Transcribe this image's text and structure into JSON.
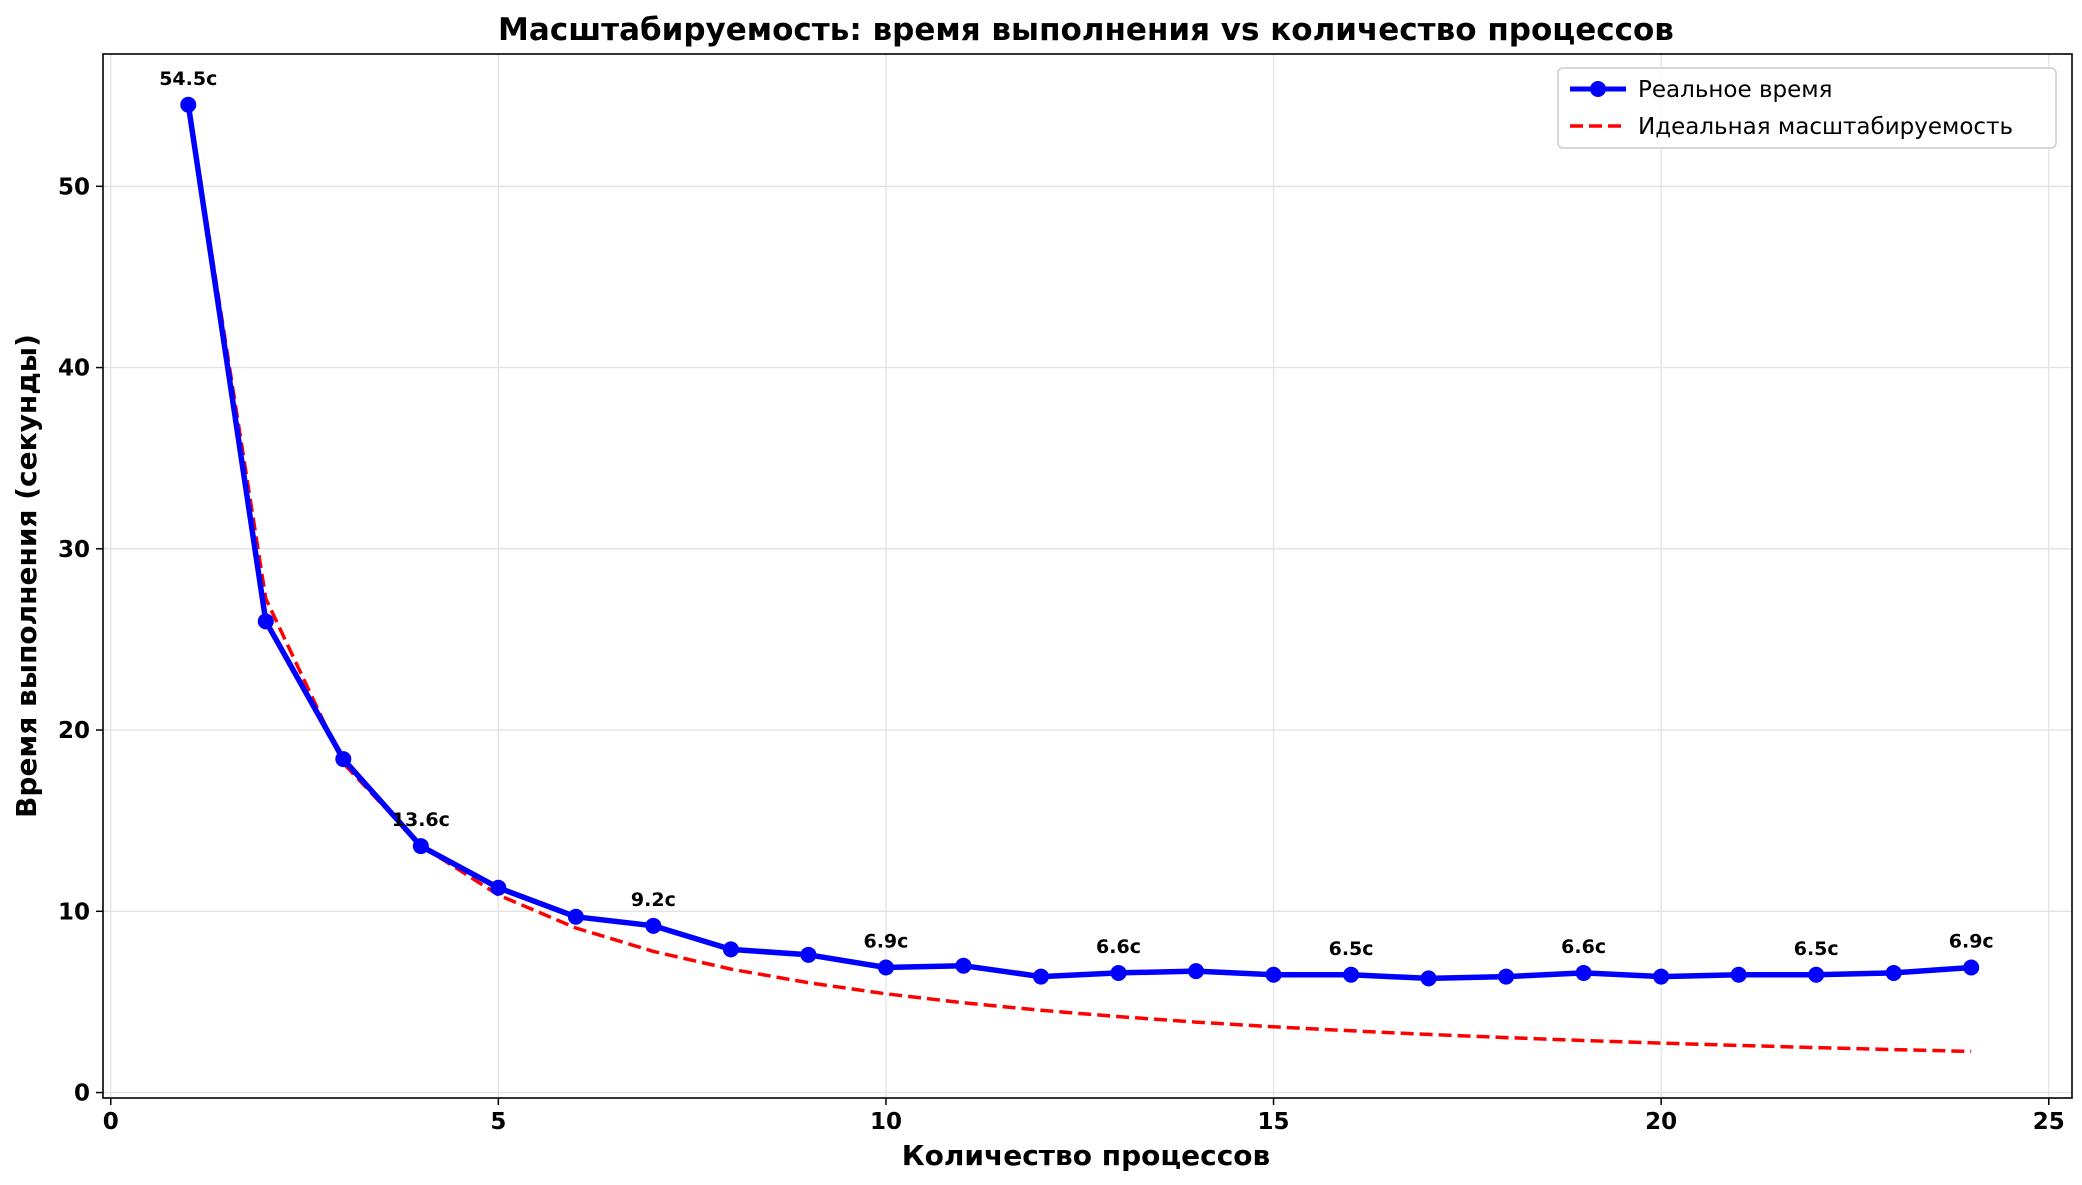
{
  "chart_data": {
    "type": "line",
    "title": "Масштабируемость: время выполнения vs количество процессов",
    "xlabel": "Количество процессов",
    "ylabel": "Время выполнения (секунды)",
    "xlim": [
      -0.1,
      25.3
    ],
    "ylim": [
      -0.3,
      57.3
    ],
    "xticks": [
      0,
      5,
      10,
      15,
      20,
      25
    ],
    "yticks": [
      0,
      10,
      20,
      30,
      40,
      50
    ],
    "grid": true,
    "legend_position": "top-right",
    "x": [
      1,
      2,
      3,
      4,
      5,
      6,
      7,
      8,
      9,
      10,
      11,
      12,
      13,
      14,
      15,
      16,
      17,
      18,
      19,
      20,
      21,
      22,
      23,
      24
    ],
    "series": [
      {
        "name": "Реальное время",
        "style": "solid-line-with-circle-markers",
        "color": "#0000ff",
        "values": [
          54.5,
          26.0,
          18.4,
          13.6,
          11.3,
          9.7,
          9.2,
          7.9,
          7.6,
          6.9,
          7.0,
          6.4,
          6.6,
          6.7,
          6.5,
          6.5,
          6.3,
          6.4,
          6.6,
          6.4,
          6.5,
          6.5,
          6.6,
          6.9
        ]
      },
      {
        "name": "Идеальная масштабируемость",
        "style": "dashed-line",
        "color": "#ff0000",
        "values": [
          54.5,
          27.25,
          18.17,
          13.63,
          10.9,
          9.08,
          7.79,
          6.81,
          6.06,
          5.45,
          4.95,
          4.54,
          4.19,
          3.89,
          3.63,
          3.41,
          3.21,
          3.03,
          2.87,
          2.73,
          2.6,
          2.48,
          2.37,
          2.27
        ]
      }
    ],
    "annotations": [
      {
        "x": 1,
        "y": 54.5,
        "text": "54.5с"
      },
      {
        "x": 4,
        "y": 13.6,
        "text": "13.6с"
      },
      {
        "x": 7,
        "y": 9.2,
        "text": "9.2с"
      },
      {
        "x": 10,
        "y": 6.9,
        "text": "6.9с"
      },
      {
        "x": 13,
        "y": 6.6,
        "text": "6.6с"
      },
      {
        "x": 16,
        "y": 6.5,
        "text": "6.5с"
      },
      {
        "x": 19,
        "y": 6.6,
        "text": "6.6с"
      },
      {
        "x": 22,
        "y": 6.5,
        "text": "6.5с"
      },
      {
        "x": 24,
        "y": 6.9,
        "text": "6.9с"
      }
    ]
  }
}
